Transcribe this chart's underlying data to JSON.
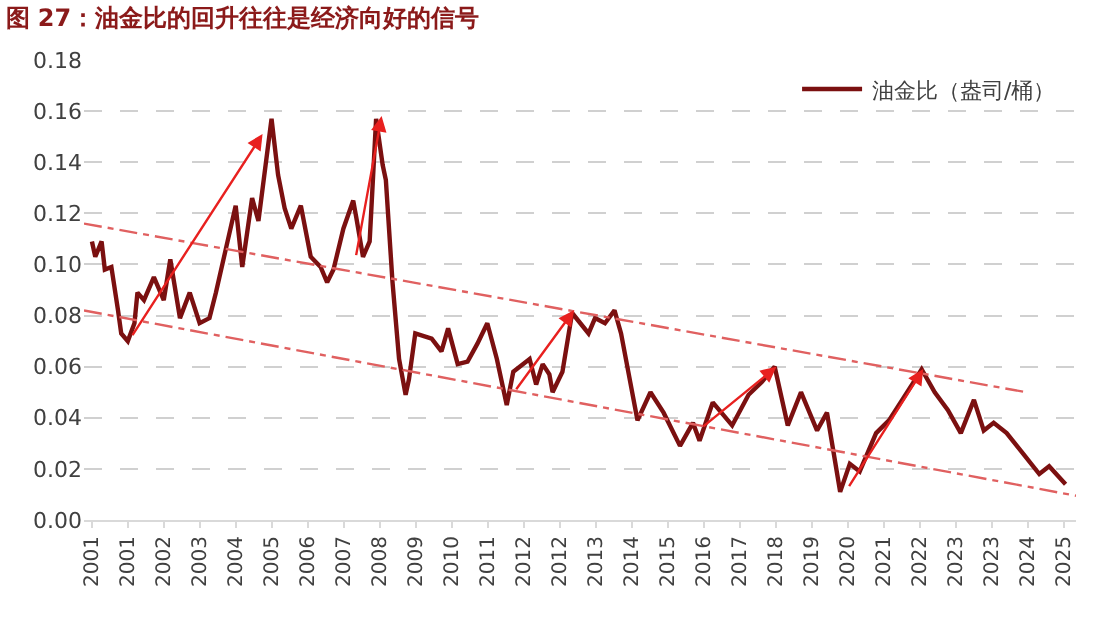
{
  "chart_data": {
    "type": "line",
    "title": "图 27：油金比的回升往往是经济向好的信号",
    "xlim": [
      "2000-10-19",
      "2026-02-06"
    ],
    "xticks": [
      {
        "value": "2001-01-01",
        "label": "2001"
      },
      {
        "value": "2001-12-02",
        "label": "2001"
      },
      {
        "value": "2002-11-03",
        "label": "2002"
      },
      {
        "value": "2003-10-02",
        "label": "2003"
      },
      {
        "value": "2004-09-02",
        "label": "2004"
      },
      {
        "value": "2005-08-04",
        "label": "2005"
      },
      {
        "value": "2006-07-05",
        "label": "2006"
      },
      {
        "value": "2007-06-06",
        "label": "2007"
      },
      {
        "value": "2008-05-05",
        "label": "2008"
      },
      {
        "value": "2009-04-06",
        "label": "2009"
      },
      {
        "value": "2010-03-07",
        "label": "2010"
      },
      {
        "value": "2011-02-06",
        "label": "2011"
      },
      {
        "value": "2012-01-08",
        "label": "2012"
      },
      {
        "value": "2012-12-06",
        "label": "2012"
      },
      {
        "value": "2013-11-07",
        "label": "2013"
      },
      {
        "value": "2014-10-09",
        "label": "2014"
      },
      {
        "value": "2015-09-10",
        "label": "2015"
      },
      {
        "value": "2016-08-11",
        "label": "2016"
      },
      {
        "value": "2017-07-09",
        "label": "2017"
      },
      {
        "value": "2018-06-10",
        "label": "2018"
      },
      {
        "value": "2019-05-12",
        "label": "2019"
      },
      {
        "value": "2020-04-13",
        "label": "2020"
      },
      {
        "value": "2021-03-15",
        "label": "2021"
      },
      {
        "value": "2022-02-10",
        "label": "2022"
      },
      {
        "value": "2023-01-12",
        "label": "2023"
      },
      {
        "value": "2023-12-14",
        "label": "2023"
      },
      {
        "value": "2024-11-14",
        "label": "2024"
      },
      {
        "value": "2025-10-16",
        "label": "2025"
      }
    ],
    "ylim": [
      0,
      0.18
    ],
    "yticks": [
      {
        "value": 0,
        "label": "0.00"
      },
      {
        "value": 0.02,
        "label": "0.02"
      },
      {
        "value": 0.04,
        "label": "0.04"
      },
      {
        "value": 0.06,
        "label": "0.06"
      },
      {
        "value": 0.08,
        "label": "0.08"
      },
      {
        "value": 0.1,
        "label": "0.10"
      },
      {
        "value": 0.12,
        "label": "0.12"
      },
      {
        "value": 0.14,
        "label": "0.14"
      },
      {
        "value": 0.16,
        "label": "0.16"
      },
      {
        "value": 0.18,
        "label": "0.18"
      }
    ],
    "grid": "y",
    "legend": "top right",
    "series": [
      {
        "name": "油金比（盎司/桶）",
        "color": "#7b1010",
        "line_style": "solid",
        "x": [
          "2001-01",
          "2001-02",
          "2001-04",
          "2001-05",
          "2001-07",
          "2001-09",
          "2001-10",
          "2001-12",
          "2002-02",
          "2002-03",
          "2002-05",
          "2002-08",
          "2002-11",
          "2003-01",
          "2003-04",
          "2003-07",
          "2003-10",
          "2004-01",
          "2004-03",
          "2004-06",
          "2004-09",
          "2004-11",
          "2005-02",
          "2005-04",
          "2005-08",
          "2005-10",
          "2005-12",
          "2006-02",
          "2006-05",
          "2006-08",
          "2006-11",
          "2007-01",
          "2007-03",
          "2007-06",
          "2007-09",
          "2007-10",
          "2007-12",
          "2008-02",
          "2008-04",
          "2008-06",
          "2008-07",
          "2008-09",
          "2008-11",
          "2009-01",
          "2009-02",
          "2009-04",
          "2009-09",
          "2009-12",
          "2010-02",
          "2010-05",
          "2010-08",
          "2010-11",
          "2011-02",
          "2011-05",
          "2011-08",
          "2011-10",
          "2012-03",
          "2012-05",
          "2012-07",
          "2012-09",
          "2012-10",
          "2013-01",
          "2013-04",
          "2013-09",
          "2013-11",
          "2014-02",
          "2014-05",
          "2014-07",
          "2014-12",
          "2015-04",
          "2015-08",
          "2016-01",
          "2016-05",
          "2016-07",
          "2016-11",
          "2017-05",
          "2017-10",
          "2018-02",
          "2018-06",
          "2018-10",
          "2019-02",
          "2019-07",
          "2019-10",
          "2020-02",
          "2020-05",
          "2020-08",
          "2021-01",
          "2021-05",
          "2021-09",
          "2021-12",
          "2022-03",
          "2022-07",
          "2022-11",
          "2023-03",
          "2023-07",
          "2023-10",
          "2024-01",
          "2024-05",
          "2024-10",
          "2025-03",
          "2025-06",
          "2025-11"
        ],
        "values": [
          0.109,
          0.103,
          0.109,
          0.098,
          0.099,
          0.082,
          0.073,
          0.07,
          0.077,
          0.089,
          0.086,
          0.095,
          0.086,
          0.102,
          0.079,
          0.089,
          0.077,
          0.079,
          0.089,
          0.106,
          0.123,
          0.099,
          0.126,
          0.117,
          0.157,
          0.135,
          0.122,
          0.114,
          0.123,
          0.103,
          0.099,
          0.093,
          0.098,
          0.114,
          0.125,
          0.118,
          0.103,
          0.109,
          0.157,
          0.139,
          0.133,
          0.093,
          0.063,
          0.049,
          0.055,
          0.073,
          0.071,
          0.066,
          0.075,
          0.061,
          0.062,
          0.069,
          0.077,
          0.063,
          0.045,
          0.058,
          0.063,
          0.053,
          0.061,
          0.057,
          0.05,
          0.058,
          0.081,
          0.073,
          0.079,
          0.077,
          0.082,
          0.073,
          0.039,
          0.05,
          0.042,
          0.029,
          0.038,
          0.031,
          0.046,
          0.037,
          0.049,
          0.054,
          0.06,
          0.037,
          0.05,
          0.035,
          0.042,
          0.011,
          0.022,
          0.019,
          0.034,
          0.039,
          0.047,
          0.053,
          0.059,
          0.05,
          0.043,
          0.034,
          0.047,
          0.035,
          0.038,
          0.034,
          0.026,
          0.018,
          0.021,
          0.014
        ]
      },
      {
        "color": "#e06060",
        "line_style": "dotted",
        "x": [
          "2000-10-19",
          "2024-10-30"
        ],
        "values": [
          0.116,
          0.05
        ]
      },
      {
        "color": "#e06060",
        "line_style": "dotted",
        "x": [
          "2000-10-19",
          "2026-02-06"
        ],
        "values": [
          0.082,
          0.0095
        ]
      }
    ]
  }
}
